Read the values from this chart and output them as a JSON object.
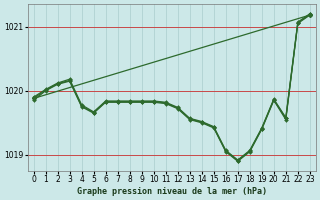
{
  "title": "Graphe pression niveau de la mer (hPa)",
  "background_color": "#cce8e8",
  "line_color": "#2d6a2d",
  "grid_color": "#aacece",
  "red_line_color": "#cc3333",
  "xlim": [
    -0.5,
    23.5
  ],
  "ylim": [
    1018.75,
    1021.35
  ],
  "yticks": [
    1019,
    1020,
    1021
  ],
  "xticks": [
    0,
    1,
    2,
    3,
    4,
    5,
    6,
    7,
    8,
    9,
    10,
    11,
    12,
    13,
    14,
    15,
    16,
    17,
    18,
    19,
    20,
    21,
    22,
    23
  ],
  "curve1": {
    "x": [
      0,
      1,
      2,
      3,
      4,
      5,
      6,
      7,
      8,
      9,
      10,
      11,
      12,
      13,
      14,
      15,
      16,
      17,
      18,
      19,
      20,
      21,
      22,
      23
    ],
    "y": [
      1019.85,
      1020.0,
      1020.1,
      1020.15,
      1019.75,
      1019.65,
      1019.82,
      1019.82,
      1019.82,
      1019.82,
      1019.82,
      1019.8,
      1019.72,
      1019.55,
      1019.5,
      1019.42,
      1019.05,
      1018.9,
      1019.05,
      1019.4,
      1019.85,
      1019.55,
      1021.05,
      1021.18
    ]
  },
  "curve2": {
    "x": [
      0,
      1,
      2,
      3,
      4,
      5,
      6,
      7,
      8,
      9,
      10,
      11,
      12,
      13,
      14,
      15,
      16,
      17,
      18,
      19,
      20,
      21,
      22,
      23
    ],
    "y": [
      1019.9,
      1020.02,
      1020.12,
      1020.18,
      1019.78,
      1019.67,
      1019.84,
      1019.84,
      1019.84,
      1019.84,
      1019.84,
      1019.82,
      1019.74,
      1019.57,
      1019.52,
      1019.44,
      1019.07,
      1018.92,
      1019.07,
      1019.42,
      1019.87,
      1019.58,
      1021.07,
      1021.2
    ]
  },
  "curve3": {
    "x": [
      0,
      1,
      2,
      3,
      4,
      5,
      6,
      7,
      8,
      9,
      10,
      11,
      12,
      13,
      14,
      15,
      16,
      17,
      18,
      19,
      20,
      21,
      22,
      23
    ],
    "y": [
      1019.88,
      1020.01,
      1020.11,
      1020.16,
      1019.76,
      1019.66,
      1019.83,
      1019.83,
      1019.83,
      1019.83,
      1019.83,
      1019.81,
      1019.73,
      1019.56,
      1019.51,
      1019.43,
      1019.06,
      1018.91,
      1019.06,
      1019.41,
      1019.86,
      1019.57,
      1021.06,
      1021.19
    ]
  },
  "straight_line": {
    "x": [
      0,
      23
    ],
    "y": [
      1019.88,
      1021.18
    ]
  },
  "markersize": 2.0,
  "linewidth": 0.9,
  "xlabel_fontsize": 6.0,
  "tick_fontsize": 5.5
}
